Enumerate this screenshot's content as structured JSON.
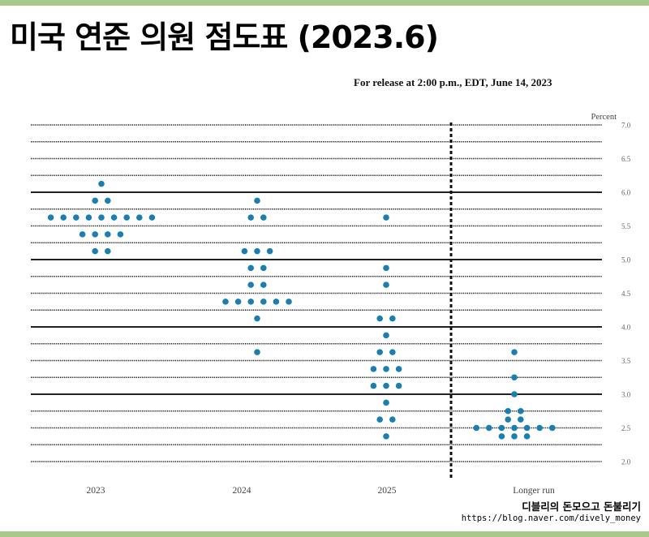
{
  "page": {
    "title": "미국 연준 의원 점도표 (2023.6)",
    "release_note": "For release at 2:00 p.m., EDT, June 14, 2023",
    "watermark_name": "디블리의 돈모으고 돈불리기",
    "watermark_url": "https://blog.naver.com/dively_money",
    "border_color": "#a8c98a"
  },
  "chart_data": {
    "type": "scatter",
    "title": "",
    "ylabel": "Percent",
    "xlabel": "",
    "ylim": [
      2.0,
      7.0
    ],
    "y_tick_labels": [
      "2.0",
      "2.5",
      "3.0",
      "3.5",
      "4.0",
      "4.5",
      "5.0",
      "5.5",
      "6.0",
      "6.5",
      "7.0"
    ],
    "grid_step": 0.25,
    "categories": [
      "2023",
      "2024",
      "2025",
      "Longer run"
    ],
    "dot_color": "#1a7fb0",
    "series": [
      {
        "category": "2023",
        "points": [
          {
            "y": 6.125,
            "n": 1
          },
          {
            "y": 5.875,
            "n": 2
          },
          {
            "y": 5.625,
            "n": 9
          },
          {
            "y": 5.375,
            "n": 4
          },
          {
            "y": 5.125,
            "n": 2
          }
        ]
      },
      {
        "category": "2024",
        "points": [
          {
            "y": 5.875,
            "n": 1
          },
          {
            "y": 5.625,
            "n": 2
          },
          {
            "y": 5.125,
            "n": 3
          },
          {
            "y": 4.875,
            "n": 2
          },
          {
            "y": 4.625,
            "n": 2
          },
          {
            "y": 4.375,
            "n": 6
          },
          {
            "y": 4.125,
            "n": 1
          },
          {
            "y": 3.625,
            "n": 1
          }
        ]
      },
      {
        "category": "2025",
        "points": [
          {
            "y": 5.625,
            "n": 1
          },
          {
            "y": 4.875,
            "n": 1
          },
          {
            "y": 4.625,
            "n": 1
          },
          {
            "y": 4.125,
            "n": 2
          },
          {
            "y": 3.875,
            "n": 1
          },
          {
            "y": 3.625,
            "n": 2
          },
          {
            "y": 3.375,
            "n": 3
          },
          {
            "y": 3.125,
            "n": 3
          },
          {
            "y": 2.875,
            "n": 1
          },
          {
            "y": 2.625,
            "n": 2
          },
          {
            "y": 2.375,
            "n": 1
          }
        ]
      },
      {
        "category": "Longer run",
        "points": [
          {
            "y": 3.625,
            "n": 1
          },
          {
            "y": 3.25,
            "n": 1
          },
          {
            "y": 3.0,
            "n": 1
          },
          {
            "y": 2.75,
            "n": 2
          },
          {
            "y": 2.625,
            "n": 2
          },
          {
            "y": 2.5,
            "n": 7
          },
          {
            "y": 2.375,
            "n": 3
          }
        ]
      }
    ]
  }
}
